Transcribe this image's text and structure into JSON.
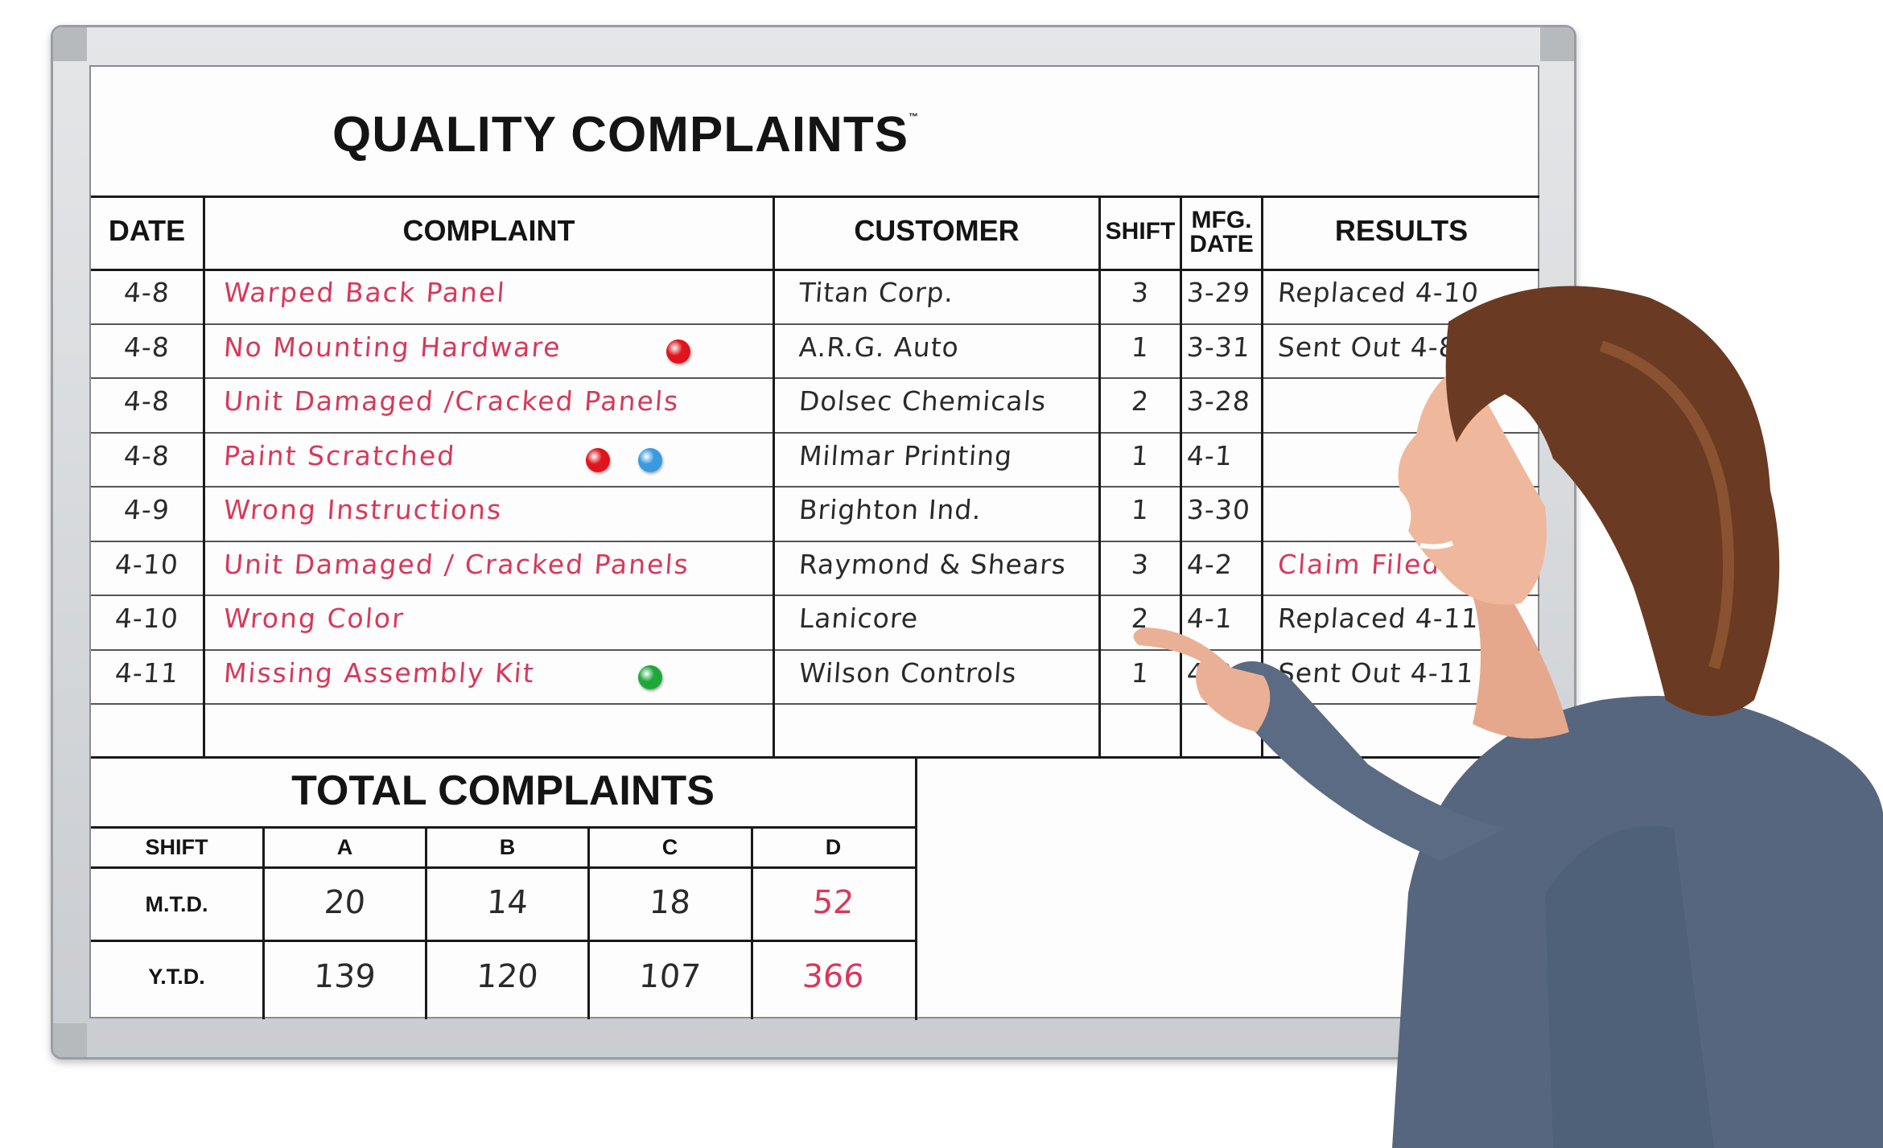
{
  "board": {
    "title": "QUALITY COMPLAINTS",
    "trademark": "™",
    "headers": {
      "date": "DATE",
      "complaint": "COMPLAINT",
      "customer": "CUSTOMER",
      "shift": "SHIFT",
      "mfg_date_line1": "MFG.",
      "mfg_date_line2": "DATE",
      "results": "RESULTS"
    },
    "rows": [
      {
        "date": "4-8",
        "complaint": "Warped Back Panel",
        "customer": "Titan Corp.",
        "shift": "3",
        "mfg_date": "3-29",
        "result": "Replaced 4-10",
        "result_color": "black"
      },
      {
        "date": "4-8",
        "complaint": "No Mounting Hardware",
        "customer": "A.R.G. Auto",
        "shift": "1",
        "mfg_date": "3-31",
        "result": "Sent Out 4-8",
        "result_color": "black"
      },
      {
        "date": "4-8",
        "complaint": "Unit Damaged /Cracked Panels",
        "customer": "Dolsec Chemicals",
        "shift": "2",
        "mfg_date": "3-28",
        "result": "",
        "result_color": "black"
      },
      {
        "date": "4-8",
        "complaint": "Paint Scratched",
        "customer": "Milmar Printing",
        "shift": "1",
        "mfg_date": "4-1",
        "result": "",
        "result_color": "black"
      },
      {
        "date": "4-9",
        "complaint": "Wrong Instructions",
        "customer": "Brighton Ind.",
        "shift": "1",
        "mfg_date": "3-30",
        "result": "",
        "result_color": "black"
      },
      {
        "date": "4-10",
        "complaint": "Unit Damaged / Cracked Panels",
        "customer": "Raymond & Shears",
        "shift": "3",
        "mfg_date": "4-2",
        "result": "Claim Filed",
        "result_color": "red"
      },
      {
        "date": "4-10",
        "complaint": "Wrong Color",
        "customer": "Lanicore",
        "shift": "2",
        "mfg_date": "4-1",
        "result": "Replaced 4-11",
        "result_color": "black"
      },
      {
        "date": "4-11",
        "complaint": "Missing Assembly Kit",
        "customer": "Wilson Controls",
        "shift": "1",
        "mfg_date": "4-2",
        "result": "Sent Out 4-11",
        "result_color": "black"
      }
    ],
    "magnets": [
      {
        "row": 1,
        "color": "#e0141c"
      },
      {
        "row": 3,
        "color": "#e0141c"
      },
      {
        "row": 3,
        "color": "#3a9ae0"
      },
      {
        "row": 7,
        "color": "#1fa83a"
      }
    ],
    "totals": {
      "title": "TOTAL COMPLAINTS",
      "shift_label": "SHIFT",
      "columns": [
        "A",
        "B",
        "C",
        "D"
      ],
      "mtd_label": "M.T.D.",
      "ytd_label": "Y.T.D.",
      "mtd": [
        "20",
        "14",
        "18",
        "52"
      ],
      "ytd": [
        "139",
        "120",
        "107",
        "366"
      ],
      "highlight_color": "#d8385a"
    }
  },
  "colors": {
    "ink_red": "#d8385a",
    "ink_black": "#2a2a2a",
    "frame": "#c9ccd0"
  }
}
